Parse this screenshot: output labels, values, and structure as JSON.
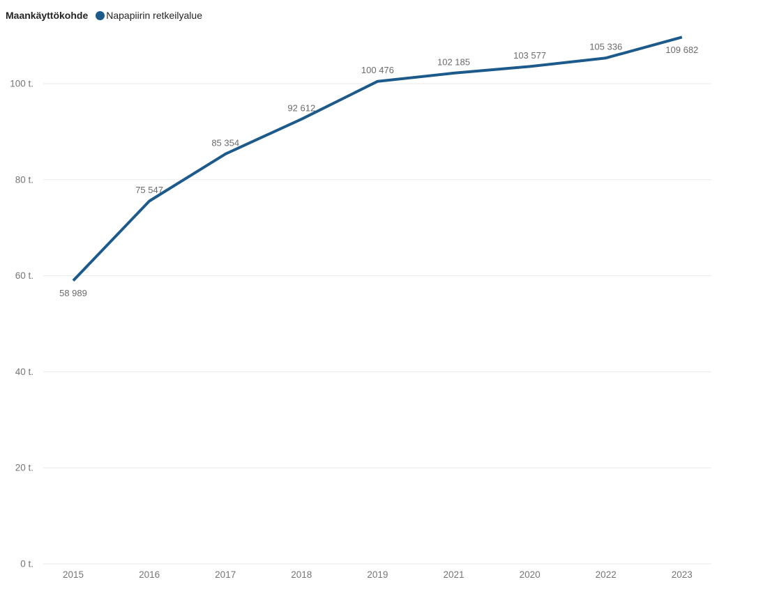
{
  "legend": {
    "title": "Maankäyttökohde",
    "items": [
      {
        "label": "Napapiirin retkeilyalue",
        "color": "#1c5a8c"
      }
    ]
  },
  "chart_data": {
    "type": "line",
    "title": "",
    "legend_title": "Maankäyttökohde",
    "legend_position": "top-left",
    "categories": [
      "2015",
      "2016",
      "2017",
      "2018",
      "2019",
      "2021",
      "2020",
      "2022",
      "2023"
    ],
    "series": [
      {
        "name": "Napapiirin retkeilyalue",
        "color": "#1c5a8c",
        "values": [
          58989,
          75547,
          85354,
          92612,
          100476,
          102185,
          103577,
          105336,
          109682
        ],
        "data_labels": [
          "58 989",
          "75 547",
          "85 354",
          "92 612",
          "100 476",
          "102 185",
          "103 577",
          "105 336",
          "109 682"
        ],
        "label_positions": [
          "below",
          "above",
          "above",
          "above",
          "above",
          "above",
          "above",
          "above",
          "below"
        ]
      }
    ],
    "x_axis": {
      "tick_labels": [
        "2015",
        "2016",
        "2017",
        "2018",
        "2019",
        "2021",
        "2020",
        "2022",
        "2023"
      ]
    },
    "y_axis": {
      "tick_labels": [
        "0 t.",
        "20 t.",
        "40 t.",
        "60 t.",
        "80 t.",
        "100 t."
      ],
      "tick_values": [
        0,
        20000,
        40000,
        60000,
        80000,
        100000
      ],
      "range": [
        0,
        113500
      ]
    },
    "grid": true,
    "colors": {
      "series": "#1c5a8c",
      "gridline": "#e9e9e9",
      "axis_label": "#757575",
      "data_label": "#6b6b6b",
      "legend_text": "#252423"
    }
  }
}
